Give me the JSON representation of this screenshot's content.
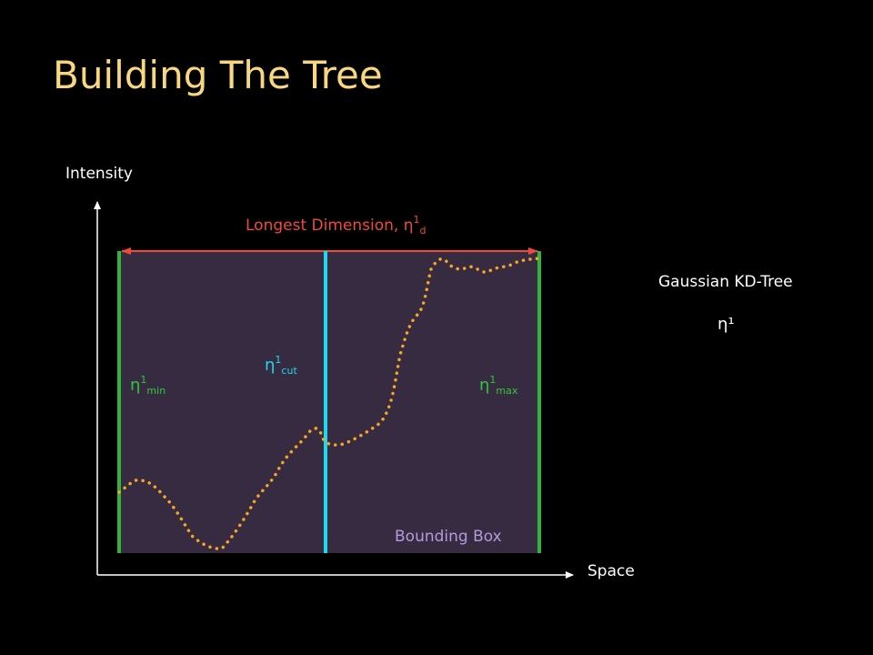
{
  "slide": {
    "title": "Building The Tree",
    "bg_color": "#000000",
    "title_color": "#f9d77e"
  },
  "diagram": {
    "y_axis_label": "Intensity",
    "x_axis_label": "Space",
    "longest_dimension_label": "Longest Dimension, η",
    "longest_dimension_sup": "1",
    "longest_dimension_sub": "d",
    "eta_min": {
      "base": "η",
      "sup": "1",
      "sub": "min"
    },
    "eta_max": {
      "base": "η",
      "sup": "1",
      "sub": "max"
    },
    "eta_cut": {
      "base": "η",
      "sup": "1",
      "sub": "cut"
    },
    "bounding_box_label": "Bounding Box",
    "colors": {
      "box_fill": "#372b42",
      "bound_lines": "#2fb53a",
      "cut_line": "#20d8ef",
      "signal_dots": "#f5a623",
      "dimension_arrow": "#f04a3a",
      "bbox_label": "#b49ad8",
      "axes": "#ffffff"
    }
  },
  "tree_panel": {
    "title": "Gaussian KD-Tree",
    "node_label": "η¹"
  }
}
